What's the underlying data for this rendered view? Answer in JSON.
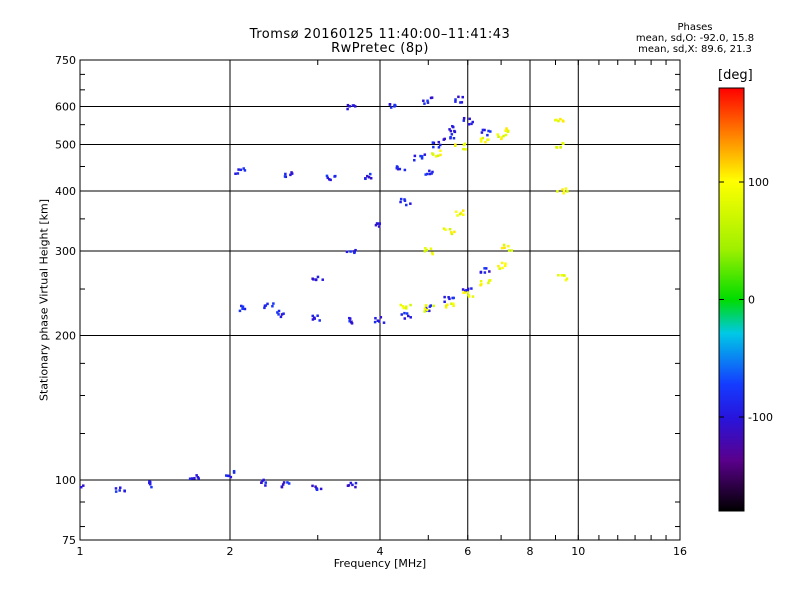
{
  "title_line1": "Tromsø 20160125 11:40:00–11:41:43",
  "title_line2": "RwPretec (8p)",
  "stats": {
    "heading": "Phases",
    "line_o": "mean, sd,O: -92.0, 15.8",
    "line_x": "mean, sd,X: 89.6, 21.3"
  },
  "colorbar": {
    "unit_label": "[deg]",
    "min": -180,
    "max": 180,
    "ticks": [
      {
        "value": 100,
        "label": "100"
      },
      {
        "value": 0,
        "label": "0"
      },
      {
        "value": -100,
        "label": "-100"
      }
    ]
  },
  "chart_data": {
    "type": "scatter",
    "xlabel": "Frequency [MHz]",
    "ylabel": "Stationary phase Virtual Height [km]",
    "xscale": "log",
    "yscale": "log",
    "xlim": [
      1,
      16
    ],
    "ylim": [
      75,
      750
    ],
    "xticks": [
      1,
      2,
      4,
      6,
      8,
      10,
      16
    ],
    "yticks": [
      75,
      100,
      200,
      300,
      400,
      500,
      600,
      750
    ],
    "grid": true,
    "series": [
      {
        "mode": "O",
        "points": [
          [
            1.0,
            97
          ],
          [
            1.2,
            96
          ],
          [
            1.4,
            98
          ],
          [
            1.7,
            101
          ],
          [
            2.0,
            103
          ],
          [
            2.3,
            99
          ],
          [
            2.6,
            98
          ],
          [
            3.0,
            97
          ],
          [
            3.5,
            98
          ],
          [
            2.1,
            228
          ],
          [
            2.5,
            222
          ],
          [
            3.0,
            217
          ],
          [
            3.5,
            215
          ],
          [
            4.0,
            216
          ],
          [
            4.5,
            220
          ],
          [
            5.0,
            228
          ],
          [
            5.5,
            238
          ],
          [
            6.0,
            250
          ],
          [
            6.5,
            275
          ],
          [
            2.4,
            230
          ],
          [
            3.0,
            265
          ],
          [
            3.5,
            300
          ],
          [
            4.0,
            340
          ],
          [
            4.5,
            380
          ],
          [
            5.0,
            440
          ],
          [
            5.5,
            520
          ],
          [
            5.8,
            620
          ],
          [
            2.1,
            440
          ],
          [
            2.6,
            432
          ],
          [
            3.2,
            427
          ],
          [
            3.8,
            430
          ],
          [
            4.4,
            445
          ],
          [
            4.8,
            470
          ],
          [
            5.2,
            500
          ],
          [
            5.6,
            540
          ],
          [
            6.0,
            560
          ],
          [
            6.5,
            530
          ],
          [
            3.5,
            600
          ],
          [
            4.2,
            605
          ],
          [
            5.0,
            618
          ]
        ],
        "phase_mean": -92.0
      },
      {
        "mode": "X",
        "points": [
          [
            4.5,
            230
          ],
          [
            5.0,
            228
          ],
          [
            5.5,
            232
          ],
          [
            6.0,
            245
          ],
          [
            6.5,
            258
          ],
          [
            7.0,
            280
          ],
          [
            7.2,
            305
          ],
          [
            5.0,
            300
          ],
          [
            5.5,
            330
          ],
          [
            5.8,
            360
          ],
          [
            5.2,
            480
          ],
          [
            5.8,
            495
          ],
          [
            6.5,
            510
          ],
          [
            7.0,
            520
          ],
          [
            7.3,
            540
          ],
          [
            9.1,
            560
          ],
          [
            9.2,
            500
          ],
          [
            9.3,
            400
          ],
          [
            9.3,
            265
          ]
        ],
        "phase_mean": 89.6
      }
    ]
  }
}
